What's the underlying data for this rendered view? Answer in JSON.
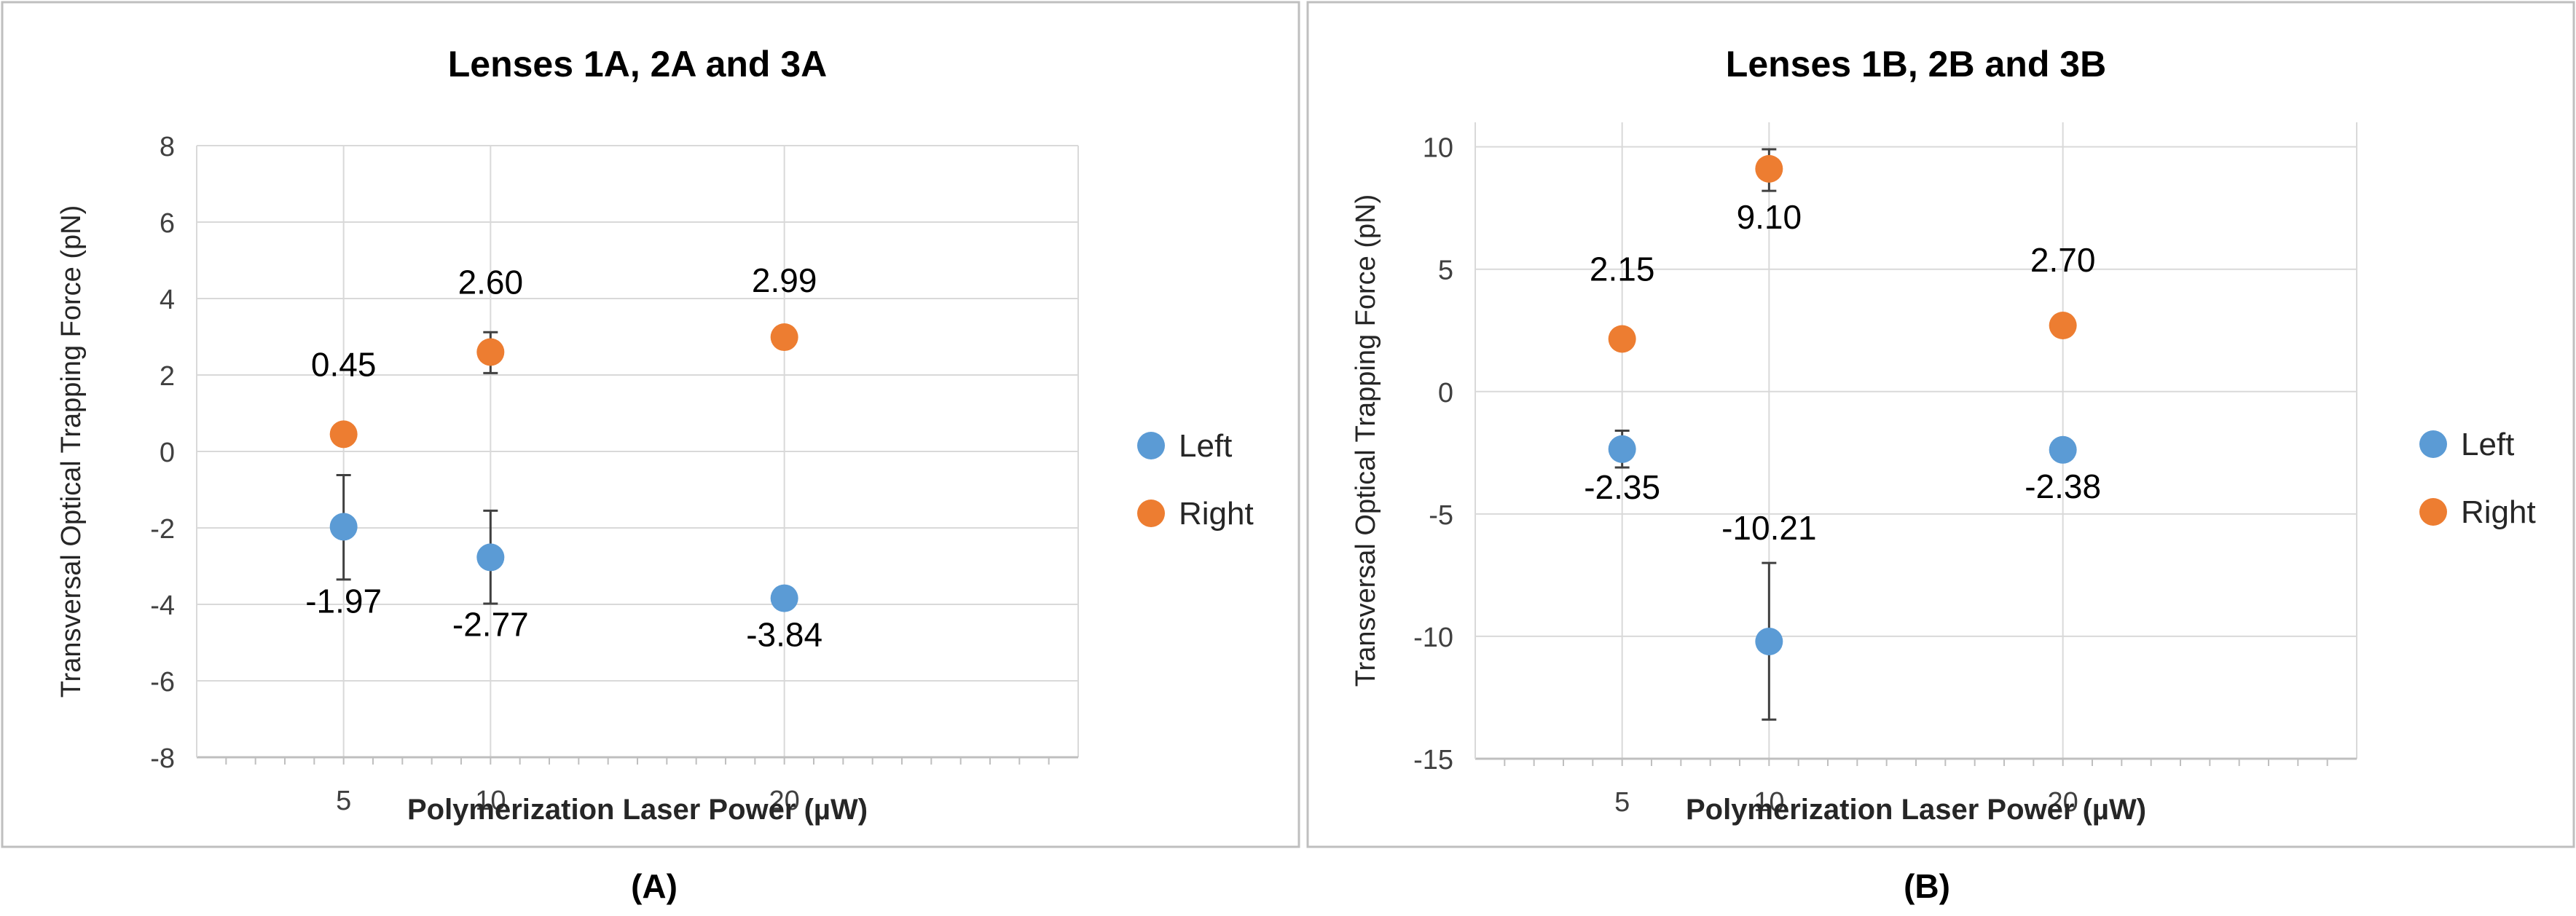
{
  "colors": {
    "left": "#5b9bd5",
    "right": "#ed7d31",
    "grid": "#d9d9d9",
    "axis": "#bfbfbf",
    "frame": "#bfbfbf",
    "errorbar": "#404040",
    "text": "#000000"
  },
  "chart_data": [
    {
      "type": "scatter",
      "title": "Lenses 1A, 2A and 3A",
      "xlabel": "Polymerization Laser Power (µW)",
      "ylabel": "Transversal Optical Trapping Force (pN)",
      "xlim": [
        0,
        30
      ],
      "ylim": [
        -8,
        8
      ],
      "y_ticks": [
        -8,
        -6,
        -4,
        -2,
        0,
        2,
        4,
        6,
        8
      ],
      "x_tick_labels": [
        5,
        10,
        20
      ],
      "caption": "(A)",
      "legend": [
        "Left",
        "Right"
      ],
      "legend_position": "right",
      "series": [
        {
          "name": "Left",
          "x": [
            5,
            10,
            20
          ],
          "y": [
            -1.97,
            -2.77,
            -3.84
          ],
          "error": [
            [
              -3.35,
              -0.62
            ],
            [
              -3.98,
              -1.55
            ],
            null
          ],
          "labels": [
            "-1.97",
            "-2.77",
            "-3.84"
          ]
        },
        {
          "name": "Right",
          "x": [
            5,
            10,
            20
          ],
          "y": [
            0.45,
            2.6,
            2.99
          ],
          "error": [
            null,
            [
              2.05,
              3.12
            ],
            null
          ],
          "labels": [
            "0.45",
            "2.60",
            "2.99"
          ]
        }
      ]
    },
    {
      "type": "scatter",
      "title": "Lenses 1B, 2B and 3B",
      "xlabel": "Polymerization Laser Power (µW)",
      "ylabel": "Transversal Optical Trapping Force (pN)",
      "xlim": [
        0,
        30
      ],
      "ylim": [
        -15,
        11
      ],
      "y_ticks": [
        -15,
        -10,
        -5,
        0,
        5,
        10
      ],
      "x_tick_labels": [
        5,
        10,
        20
      ],
      "caption": "(B)",
      "legend": [
        "Left",
        "Right"
      ],
      "legend_position": "right",
      "series": [
        {
          "name": "Left",
          "x": [
            5,
            10,
            20
          ],
          "y": [
            -2.35,
            -10.21,
            -2.38
          ],
          "error": [
            [
              -3.1,
              -1.6
            ],
            [
              -13.4,
              -7.0
            ],
            null
          ],
          "labels": [
            "-2.35",
            "-10.21",
            "-2.38"
          ]
        },
        {
          "name": "Right",
          "x": [
            5,
            10,
            20
          ],
          "y": [
            2.15,
            9.1,
            2.7
          ],
          "error": [
            null,
            [
              8.2,
              9.9
            ],
            [
              2.3,
              3.1
            ]
          ],
          "labels": [
            "2.15",
            "9.10",
            "2.70"
          ]
        }
      ]
    }
  ]
}
